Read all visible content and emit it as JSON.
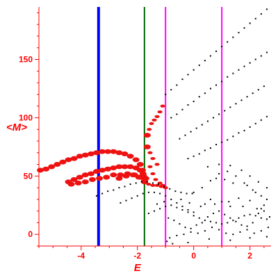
{
  "chart_data": {
    "type": "scatter",
    "xlabel": "E",
    "ylabel": "<M>",
    "xlim": [
      -5.5,
      2.75
    ],
    "ylim": [
      -10,
      195
    ],
    "xticks": [
      -4,
      -2,
      0,
      2
    ],
    "yticks": [
      0,
      50,
      100,
      150
    ],
    "grid": false,
    "legend": "none",
    "colors": {
      "axes": "#ff0000",
      "red_points": "#ee1111",
      "black_points": "#000000",
      "blue_line": "#0000ff",
      "green_line": "#006600",
      "magenta_line": "#ff00ff"
    },
    "vertical_lines": [
      {
        "x": -3.38,
        "color": "blue",
        "weight": "thick"
      },
      {
        "x": -1.75,
        "color": "green",
        "weight": "medium"
      },
      {
        "x": -1.0,
        "color": "magenta",
        "weight": "medium"
      },
      {
        "x": 1.0,
        "color": "magenta",
        "weight": "medium"
      }
    ],
    "series": [
      {
        "color": "red",
        "points": [
          [
            -5.45,
            55
          ],
          [
            -5.25,
            56
          ],
          [
            -5.05,
            58
          ],
          [
            -4.85,
            60
          ],
          [
            -4.65,
            62
          ],
          [
            -4.45,
            64
          ],
          [
            -4.25,
            65
          ],
          [
            -4.05,
            67
          ],
          [
            -3.85,
            68
          ],
          [
            -3.65,
            69
          ],
          [
            -3.45,
            70
          ],
          [
            -3.25,
            71
          ],
          [
            -3.05,
            71
          ],
          [
            -2.85,
            71
          ],
          [
            -2.65,
            70
          ],
          [
            -2.45,
            69
          ],
          [
            -2.25,
            67
          ],
          [
            -2.05,
            64
          ],
          [
            -1.9,
            60
          ],
          [
            -1.82,
            55
          ],
          [
            -1.78,
            50
          ]
        ]
      },
      {
        "color": "red",
        "points": [
          [
            -4.45,
            45
          ],
          [
            -4.25,
            47
          ],
          [
            -4.05,
            49
          ],
          [
            -3.85,
            51
          ],
          [
            -3.65,
            52
          ],
          [
            -3.45,
            54
          ],
          [
            -3.25,
            55
          ],
          [
            -3.05,
            56
          ],
          [
            -2.85,
            57
          ],
          [
            -2.65,
            58
          ],
          [
            -2.45,
            58
          ],
          [
            -2.25,
            58
          ],
          [
            -2.05,
            57
          ],
          [
            -1.9,
            55
          ],
          [
            -1.8,
            52
          ],
          [
            -1.7,
            48
          ]
        ]
      },
      {
        "color": "red",
        "points": [
          [
            -4.35,
            43
          ],
          [
            -4.1,
            44
          ],
          [
            -3.85,
            45
          ],
          [
            -3.6,
            47
          ],
          [
            -3.35,
            48
          ],
          [
            -3.1,
            49
          ],
          [
            -2.85,
            51
          ],
          [
            -2.6,
            51
          ],
          [
            -2.35,
            52
          ],
          [
            -2.1,
            51
          ],
          [
            -1.9,
            49
          ],
          [
            -1.75,
            46
          ]
        ]
      },
      {
        "color": "red",
        "points": [
          [
            -2.65,
            48
          ],
          [
            -2.4,
            50
          ],
          [
            -2.15,
            51
          ],
          [
            -1.95,
            49
          ],
          [
            -1.75,
            45
          ],
          [
            -1.6,
            43
          ],
          [
            -1.45,
            42
          ],
          [
            -1.3,
            42
          ],
          [
            -1.15,
            41
          ],
          [
            -1.0,
            40
          ]
        ]
      },
      {
        "color": "red",
        "points": [
          [
            -1.65,
            85
          ],
          [
            -1.58,
            90
          ],
          [
            -1.5,
            95
          ],
          [
            -1.4,
            98
          ],
          [
            -1.3,
            101
          ],
          [
            -1.2,
            105
          ],
          [
            -1.1,
            110
          ]
        ]
      },
      {
        "color": "red",
        "points": [
          [
            -1.65,
            75
          ],
          [
            -1.55,
            70
          ],
          [
            -1.45,
            65
          ],
          [
            -1.3,
            60
          ]
        ]
      },
      {
        "color": "red",
        "points": [
          [
            -1.55,
            58
          ],
          [
            -1.45,
            52
          ],
          [
            -1.35,
            47
          ],
          [
            -1.2,
            44
          ],
          [
            -1.1,
            42
          ]
        ]
      },
      {
        "color": "black",
        "points": [
          [
            -1.0,
            120
          ],
          [
            -0.8,
            124
          ],
          [
            -0.6,
            128
          ],
          [
            -0.4,
            133
          ],
          [
            -0.2,
            137
          ],
          [
            0.0,
            141
          ],
          [
            0.2,
            145
          ],
          [
            0.4,
            149
          ],
          [
            0.6,
            153
          ],
          [
            0.8,
            157
          ],
          [
            1.0,
            161
          ],
          [
            1.2,
            165
          ],
          [
            1.4,
            169
          ],
          [
            1.6,
            173
          ],
          [
            1.8,
            177
          ],
          [
            2.0,
            181
          ],
          [
            2.2,
            185
          ],
          [
            2.4,
            189
          ],
          [
            2.6,
            193
          ]
        ]
      },
      {
        "color": "black",
        "points": [
          [
            -0.8,
            100
          ],
          [
            -0.6,
            103
          ],
          [
            -0.4,
            107
          ],
          [
            -0.2,
            111
          ],
          [
            0.0,
            114
          ],
          [
            0.2,
            118
          ],
          [
            0.4,
            121
          ],
          [
            0.6,
            125
          ],
          [
            0.8,
            128
          ],
          [
            1.0,
            131
          ],
          [
            1.2,
            135
          ],
          [
            1.4,
            138
          ],
          [
            1.6,
            141
          ],
          [
            1.8,
            144
          ],
          [
            2.0,
            147
          ],
          [
            2.2,
            150
          ],
          [
            2.4,
            153
          ],
          [
            2.6,
            156
          ]
        ]
      },
      {
        "color": "black",
        "points": [
          [
            -0.5,
            82
          ],
          [
            -0.3,
            85
          ],
          [
            -0.1,
            88
          ],
          [
            0.1,
            91
          ],
          [
            0.3,
            94
          ],
          [
            0.5,
            97
          ],
          [
            0.7,
            100
          ],
          [
            0.9,
            103
          ],
          [
            1.1,
            106
          ],
          [
            1.3,
            109
          ],
          [
            1.5,
            112
          ],
          [
            1.7,
            115
          ],
          [
            1.9,
            118
          ],
          [
            2.1,
            121
          ],
          [
            2.3,
            124
          ],
          [
            2.5,
            127
          ]
        ]
      },
      {
        "color": "black",
        "points": [
          [
            -0.2,
            65
          ],
          [
            0.0,
            67
          ],
          [
            0.2,
            69
          ],
          [
            0.4,
            72
          ],
          [
            0.6,
            74
          ],
          [
            0.8,
            77
          ],
          [
            1.0,
            79
          ],
          [
            1.2,
            81
          ],
          [
            1.4,
            84
          ],
          [
            1.6,
            87
          ],
          [
            1.8,
            89
          ],
          [
            2.0,
            92
          ],
          [
            2.2,
            95
          ],
          [
            2.4,
            98
          ],
          [
            2.6,
            101
          ]
        ]
      },
      {
        "color": "black",
        "points": [
          [
            -3.45,
            33
          ],
          [
            -3.25,
            35
          ],
          [
            -3.05,
            37
          ],
          [
            -2.85,
            38
          ],
          [
            -2.65,
            40
          ],
          [
            -2.45,
            41
          ],
          [
            -2.25,
            43
          ],
          [
            -2.05,
            44
          ],
          [
            -1.85,
            45
          ],
          [
            -1.65,
            45
          ],
          [
            -1.45,
            44
          ],
          [
            -1.25,
            43
          ],
          [
            -1.05,
            41
          ],
          [
            -0.85,
            39
          ],
          [
            -0.65,
            37
          ],
          [
            -0.45,
            36
          ],
          [
            -0.25,
            35
          ],
          [
            -0.05,
            35
          ]
        ]
      },
      {
        "color": "black",
        "points": [
          [
            -2.6,
            27
          ],
          [
            -2.4,
            29
          ],
          [
            -2.2,
            31
          ],
          [
            -2.0,
            33
          ],
          [
            -1.8,
            35
          ],
          [
            -1.6,
            36
          ],
          [
            -1.4,
            36
          ],
          [
            -1.2,
            35
          ],
          [
            -1.0,
            33
          ],
          [
            -0.8,
            30
          ],
          [
            -0.6,
            27
          ],
          [
            -0.4,
            24
          ],
          [
            -0.2,
            21
          ],
          [
            0.0,
            19
          ]
        ]
      },
      {
        "color": "black",
        "points": [
          [
            0.0,
            36
          ],
          [
            0.3,
            40
          ],
          [
            0.6,
            46
          ],
          [
            0.9,
            52
          ],
          [
            1.2,
            54
          ],
          [
            1.5,
            50
          ],
          [
            1.8,
            44
          ],
          [
            2.1,
            38
          ],
          [
            2.4,
            33
          ],
          [
            2.6,
            30
          ],
          [
            0.5,
            58
          ],
          [
            0.9,
            60
          ],
          [
            1.3,
            59
          ],
          [
            1.7,
            55
          ],
          [
            2.0,
            50
          ],
          [
            2.3,
            45
          ],
          [
            2.6,
            40
          ],
          [
            0.8,
            48
          ],
          [
            1.1,
            47
          ],
          [
            1.4,
            44
          ],
          [
            1.9,
            42
          ],
          [
            2.2,
            36
          ],
          [
            2.5,
            25
          ],
          [
            0.6,
            30
          ],
          [
            0.4,
            26
          ],
          [
            1.0,
            28
          ],
          [
            1.6,
            31
          ],
          [
            2.0,
            29
          ],
          [
            2.4,
            22
          ],
          [
            1.3,
            24
          ]
        ]
      },
      {
        "color": "black",
        "points": [
          [
            -1.6,
            18
          ],
          [
            -1.4,
            20
          ],
          [
            -1.2,
            22
          ],
          [
            -1.0,
            24
          ],
          [
            -0.8,
            25
          ],
          [
            -0.6,
            23
          ],
          [
            -0.4,
            21
          ],
          [
            -0.2,
            19
          ],
          [
            0.0,
            16
          ],
          [
            0.2,
            14
          ],
          [
            0.4,
            12
          ],
          [
            0.6,
            11
          ],
          [
            0.8,
            10
          ],
          [
            1.0,
            9
          ],
          [
            1.2,
            10
          ],
          [
            1.4,
            12
          ],
          [
            1.6,
            14
          ],
          [
            1.8,
            16
          ],
          [
            2.0,
            17
          ],
          [
            2.2,
            16
          ],
          [
            2.4,
            14
          ],
          [
            2.6,
            13
          ],
          [
            -0.9,
            14
          ],
          [
            -0.7,
            12
          ],
          [
            -0.5,
            9
          ],
          [
            -0.3,
            6
          ],
          [
            -0.1,
            5
          ],
          [
            0.1,
            8
          ],
          [
            0.3,
            10
          ],
          [
            0.5,
            15
          ],
          [
            0.7,
            18
          ],
          [
            0.9,
            20
          ],
          [
            1.1,
            17
          ],
          [
            1.3,
            14
          ],
          [
            1.5,
            11
          ],
          [
            1.7,
            8
          ],
          [
            1.9,
            7
          ],
          [
            2.1,
            10
          ],
          [
            2.3,
            18
          ],
          [
            2.5,
            20
          ],
          [
            2.7,
            15
          ],
          [
            -0.85,
            -3
          ],
          [
            -0.6,
            -1
          ],
          [
            -0.35,
            0
          ],
          [
            -0.1,
            2
          ],
          [
            0.15,
            1
          ],
          [
            0.4,
            3
          ],
          [
            0.65,
            6
          ],
          [
            0.9,
            4
          ],
          [
            1.15,
            1
          ],
          [
            1.4,
            0
          ],
          [
            1.65,
            2
          ],
          [
            1.9,
            4
          ],
          [
            2.15,
            1
          ],
          [
            2.4,
            3
          ],
          [
            2.65,
            6
          ],
          [
            -0.95,
            -6
          ],
          [
            -0.75,
            -8
          ],
          [
            -0.2,
            -7
          ],
          [
            0.55,
            -4
          ],
          [
            1.3,
            -5
          ],
          [
            2.0,
            -3
          ],
          [
            2.6,
            -2
          ],
          [
            -0.45,
            30
          ],
          [
            -0.15,
            27
          ],
          [
            0.25,
            24
          ],
          [
            0.75,
            26
          ],
          [
            1.25,
            28
          ],
          [
            1.75,
            24
          ],
          [
            2.25,
            22
          ],
          [
            -1.3,
            26
          ],
          [
            -1.05,
            28
          ]
        ]
      }
    ]
  }
}
